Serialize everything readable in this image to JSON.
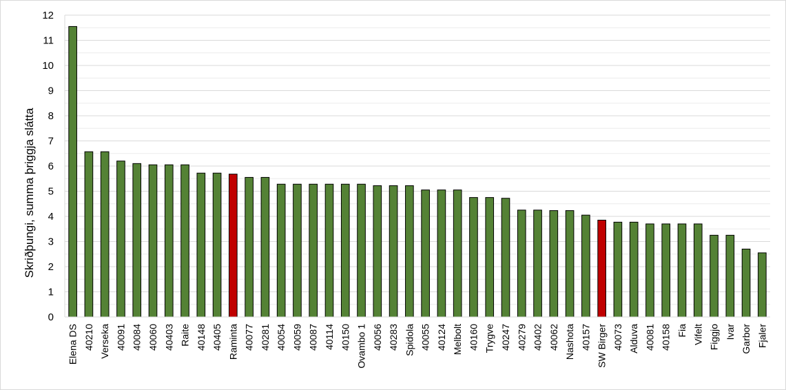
{
  "chart_data": {
    "type": "bar",
    "title": "",
    "xlabel": "",
    "ylabel": "Skriðþungi, summa þriggja slátta",
    "ylim": [
      0,
      12
    ],
    "yticks": [
      0,
      1,
      2,
      3,
      4,
      5,
      6,
      7,
      8,
      9,
      10,
      11,
      12
    ],
    "grid": true,
    "legend": "none",
    "colors": {
      "default": "#548235",
      "highlight": "#c00000",
      "outline": "#000000",
      "grid": "#d9d9d9"
    },
    "categories": [
      "Elena DS",
      "40210",
      "Verseka",
      "40091",
      "40084",
      "40060",
      "40403",
      "Raite",
      "40148",
      "40405",
      "Raminta",
      "40077",
      "40281",
      "40054",
      "40059",
      "40087",
      "40114",
      "40150",
      "Ovambo 1",
      "40056",
      "40283",
      "Spidola",
      "40055",
      "40124",
      "Melbolt",
      "40160",
      "Trygve",
      "40247",
      "40279",
      "40402",
      "40062",
      "Nashota",
      "40157",
      "SW Birger",
      "40073",
      "Alduva",
      "40081",
      "40158",
      "Fia",
      "Vifelt",
      "Figgjo",
      "Ivar",
      "Garbor",
      "Fjaler"
    ],
    "values": [
      11.55,
      6.57,
      6.57,
      6.2,
      6.1,
      6.05,
      6.05,
      6.05,
      5.72,
      5.72,
      5.68,
      5.55,
      5.55,
      5.28,
      5.28,
      5.28,
      5.28,
      5.28,
      5.28,
      5.22,
      5.22,
      5.22,
      5.05,
      5.05,
      5.05,
      4.75,
      4.75,
      4.72,
      4.25,
      4.25,
      4.23,
      4.23,
      4.05,
      3.85,
      3.77,
      3.77,
      3.7,
      3.7,
      3.7,
      3.7,
      3.25,
      3.25,
      2.7,
      2.55
    ],
    "highlighted": [
      "Raminta",
      "SW Birger"
    ]
  }
}
